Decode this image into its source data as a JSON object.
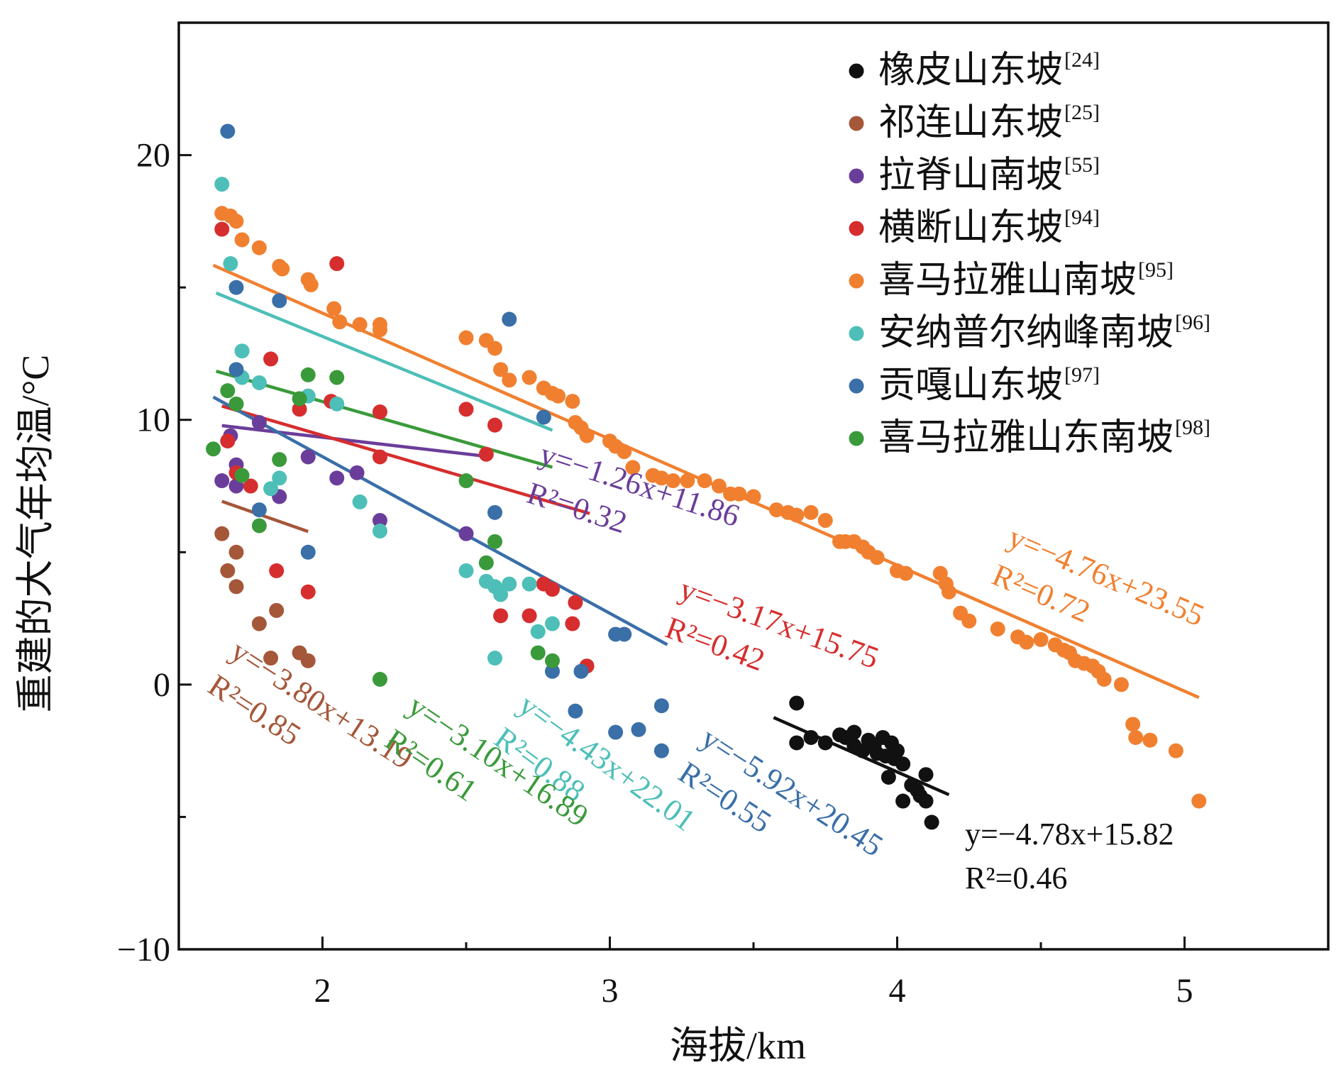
{
  "chart_data": {
    "type": "scatter",
    "xlabel": "海拔/km",
    "ylabel": "重建的大气年均温/°C",
    "xlim": [
      1.5,
      5.5
    ],
    "ylim": [
      -10,
      25
    ],
    "xticks": [
      2,
      3,
      4,
      5
    ],
    "yticks": [
      -10,
      0,
      10,
      20
    ],
    "xtick_labels": [
      "2",
      "3",
      "4",
      "5"
    ],
    "ytick_labels": [
      "−10",
      "0",
      "10",
      "20"
    ],
    "legend_position": "top-right",
    "series": [
      {
        "name": "橡皮山东坡",
        "ref": "[24]",
        "color": "#111111",
        "points": [
          [
            3.65,
            -0.7
          ],
          [
            3.65,
            -2.2
          ],
          [
            3.7,
            -2.0
          ],
          [
            3.75,
            -2.2
          ],
          [
            3.8,
            -1.9
          ],
          [
            3.82,
            -2.0
          ],
          [
            3.85,
            -1.8
          ],
          [
            3.85,
            -2.3
          ],
          [
            3.88,
            -2.5
          ],
          [
            3.9,
            -2.1
          ],
          [
            3.92,
            -2.3
          ],
          [
            3.93,
            -2.6
          ],
          [
            3.95,
            -2.0
          ],
          [
            3.96,
            -2.7
          ],
          [
            3.97,
            -3.5
          ],
          [
            3.98,
            -2.2
          ],
          [
            3.99,
            -2.8
          ],
          [
            4.0,
            -2.5
          ],
          [
            4.02,
            -3.0
          ],
          [
            4.02,
            -4.4
          ],
          [
            4.05,
            -3.8
          ],
          [
            4.07,
            -4.0
          ],
          [
            4.08,
            -4.2
          ],
          [
            4.1,
            -4.4
          ],
          [
            4.1,
            -3.4
          ],
          [
            4.12,
            -5.2
          ]
        ],
        "fit": {
          "x": [
            3.57,
            4.18
          ],
          "equation": "y=−4.78x+15.82",
          "r2": "R²=0.46"
        }
      },
      {
        "name": "祁连山东坡",
        "ref": "[25]",
        "color": "#A5573A",
        "points": [
          [
            1.65,
            5.7
          ],
          [
            1.67,
            4.3
          ],
          [
            1.7,
            5.0
          ],
          [
            1.7,
            3.7
          ],
          [
            1.78,
            2.3
          ],
          [
            1.82,
            1.0
          ],
          [
            1.84,
            2.8
          ],
          [
            1.92,
            1.2
          ],
          [
            1.95,
            0.9
          ]
        ],
        "fit": {
          "x": [
            1.65,
            1.95
          ],
          "equation": "y=−3.80x+13.19",
          "r2": "R²=0.85"
        }
      },
      {
        "name": "拉脊山南坡",
        "ref": "[55]",
        "color": "#6B3D9A",
        "points": [
          [
            1.65,
            7.7
          ],
          [
            1.68,
            9.4
          ],
          [
            1.7,
            7.5
          ],
          [
            1.7,
            8.3
          ],
          [
            1.78,
            9.9
          ],
          [
            1.85,
            7.1
          ],
          [
            1.95,
            8.6
          ],
          [
            2.05,
            7.8
          ],
          [
            2.12,
            8.0
          ],
          [
            2.2,
            6.2
          ],
          [
            2.5,
            5.7
          ]
        ],
        "fit": {
          "x": [
            1.65,
            2.58
          ],
          "equation": "y=−1.26x+11.86",
          "r2": "R²=0.32"
        }
      },
      {
        "name": "横断山东坡",
        "ref": "[94]",
        "color": "#D62E2E",
        "points": [
          [
            1.65,
            17.2
          ],
          [
            1.67,
            9.2
          ],
          [
            1.7,
            8.0
          ],
          [
            1.75,
            7.5
          ],
          [
            1.82,
            12.3
          ],
          [
            1.84,
            4.3
          ],
          [
            1.92,
            10.4
          ],
          [
            1.95,
            3.5
          ],
          [
            2.05,
            15.9
          ],
          [
            2.03,
            10.7
          ],
          [
            2.2,
            10.3
          ],
          [
            2.2,
            8.6
          ],
          [
            2.5,
            10.4
          ],
          [
            2.57,
            8.7
          ],
          [
            2.6,
            9.8
          ],
          [
            2.62,
            2.6
          ],
          [
            2.72,
            2.6
          ],
          [
            2.77,
            3.8
          ],
          [
            2.8,
            3.6
          ],
          [
            2.87,
            2.3
          ],
          [
            2.88,
            3.1
          ],
          [
            2.92,
            0.7
          ]
        ],
        "fit": {
          "x": [
            1.65,
            2.93
          ],
          "equation": "y=−3.17x+15.75",
          "r2": "R²=0.42"
        }
      },
      {
        "name": "喜马拉雅山南坡",
        "ref": "[95]",
        "color": "#F08030",
        "points": [
          [
            1.65,
            17.8
          ],
          [
            1.68,
            17.7
          ],
          [
            1.7,
            17.5
          ],
          [
            1.72,
            16.8
          ],
          [
            1.78,
            16.5
          ],
          [
            1.85,
            15.8
          ],
          [
            1.86,
            15.7
          ],
          [
            1.95,
            15.3
          ],
          [
            1.96,
            15.1
          ],
          [
            2.04,
            14.2
          ],
          [
            2.06,
            13.7
          ],
          [
            2.13,
            13.6
          ],
          [
            2.2,
            13.6
          ],
          [
            2.2,
            13.4
          ],
          [
            2.5,
            13.1
          ],
          [
            2.57,
            13.0
          ],
          [
            2.6,
            12.7
          ],
          [
            2.62,
            11.9
          ],
          [
            2.65,
            11.5
          ],
          [
            2.72,
            11.6
          ],
          [
            2.77,
            11.2
          ],
          [
            2.8,
            11.0
          ],
          [
            2.82,
            10.9
          ],
          [
            2.87,
            10.7
          ],
          [
            2.88,
            9.9
          ],
          [
            2.9,
            9.7
          ],
          [
            2.92,
            9.4
          ],
          [
            3.0,
            9.2
          ],
          [
            3.02,
            9.0
          ],
          [
            3.05,
            8.8
          ],
          [
            3.08,
            8.2
          ],
          [
            3.15,
            7.9
          ],
          [
            3.18,
            7.8
          ],
          [
            3.22,
            7.7
          ],
          [
            3.27,
            7.7
          ],
          [
            3.33,
            7.7
          ],
          [
            3.38,
            7.5
          ],
          [
            3.42,
            7.2
          ],
          [
            3.45,
            7.2
          ],
          [
            3.5,
            7.1
          ],
          [
            3.58,
            6.6
          ],
          [
            3.62,
            6.5
          ],
          [
            3.65,
            6.4
          ],
          [
            3.7,
            6.5
          ],
          [
            3.75,
            6.2
          ],
          [
            3.8,
            5.4
          ],
          [
            3.82,
            5.4
          ],
          [
            3.85,
            5.4
          ],
          [
            3.88,
            5.2
          ],
          [
            3.9,
            5.0
          ],
          [
            3.93,
            4.8
          ],
          [
            4.0,
            4.3
          ],
          [
            4.03,
            4.2
          ],
          [
            4.15,
            4.2
          ],
          [
            4.17,
            3.8
          ],
          [
            4.18,
            3.5
          ],
          [
            4.22,
            2.7
          ],
          [
            4.25,
            2.4
          ],
          [
            4.35,
            2.1
          ],
          [
            4.42,
            1.8
          ],
          [
            4.45,
            1.6
          ],
          [
            4.5,
            1.7
          ],
          [
            4.55,
            1.5
          ],
          [
            4.58,
            1.3
          ],
          [
            4.6,
            1.2
          ],
          [
            4.62,
            0.9
          ],
          [
            4.65,
            0.8
          ],
          [
            4.68,
            0.7
          ],
          [
            4.7,
            0.5
          ],
          [
            4.72,
            0.2
          ],
          [
            4.78,
            0.0
          ],
          [
            4.82,
            -1.5
          ],
          [
            4.83,
            -2.0
          ],
          [
            4.88,
            -2.1
          ],
          [
            4.97,
            -2.5
          ],
          [
            5.05,
            -4.4
          ]
        ],
        "fit": {
          "x": [
            1.62,
            5.05
          ],
          "equation": "y=−4.76x+23.55",
          "r2": "R²=0.72"
        }
      },
      {
        "name": "安纳普尔纳峰南坡",
        "ref": "[96]",
        "color": "#4DBFB8",
        "points": [
          [
            1.65,
            18.9
          ],
          [
            1.68,
            15.9
          ],
          [
            1.72,
            12.6
          ],
          [
            1.72,
            11.6
          ],
          [
            1.78,
            11.4
          ],
          [
            1.82,
            7.4
          ],
          [
            1.85,
            7.8
          ],
          [
            1.95,
            10.9
          ],
          [
            2.05,
            10.6
          ],
          [
            2.13,
            6.9
          ],
          [
            2.2,
            5.8
          ],
          [
            2.5,
            4.3
          ],
          [
            2.57,
            3.9
          ],
          [
            2.6,
            3.7
          ],
          [
            2.6,
            1.0
          ],
          [
            2.62,
            3.4
          ],
          [
            2.65,
            3.8
          ],
          [
            2.72,
            3.8
          ],
          [
            2.75,
            2.0
          ],
          [
            2.8,
            2.3
          ]
        ],
        "fit": {
          "x": [
            1.63,
            2.8
          ],
          "equation": "y=−4.43x+22.01",
          "r2": "R²=0.88"
        }
      },
      {
        "name": "贡嘎山东坡",
        "ref": "[97]",
        "color": "#3A6FA8",
        "points": [
          [
            1.67,
            20.9
          ],
          [
            1.7,
            15.0
          ],
          [
            1.7,
            11.9
          ],
          [
            1.78,
            6.6
          ],
          [
            1.85,
            14.5
          ],
          [
            1.95,
            5.0
          ],
          [
            2.6,
            6.5
          ],
          [
            2.65,
            13.8
          ],
          [
            2.77,
            10.1
          ],
          [
            2.8,
            0.5
          ],
          [
            2.88,
            -1.0
          ],
          [
            2.9,
            0.5
          ],
          [
            3.02,
            1.9
          ],
          [
            3.05,
            1.9
          ],
          [
            3.02,
            -1.8
          ],
          [
            3.1,
            -1.7
          ],
          [
            3.18,
            -0.8
          ],
          [
            3.18,
            -2.5
          ]
        ],
        "fit": {
          "x": [
            1.62,
            3.2
          ],
          "equation": "y=−5.92x+20.45",
          "r2": "R²=0.55"
        }
      },
      {
        "name": "喜马拉雅山东南坡",
        "ref": "[98]",
        "color": "#3A9A3A",
        "points": [
          [
            1.62,
            8.9
          ],
          [
            1.67,
            11.1
          ],
          [
            1.7,
            10.6
          ],
          [
            1.72,
            7.9
          ],
          [
            1.78,
            6.0
          ],
          [
            1.85,
            8.5
          ],
          [
            1.92,
            10.8
          ],
          [
            1.95,
            11.7
          ],
          [
            2.05,
            11.6
          ],
          [
            2.2,
            0.2
          ],
          [
            2.5,
            7.7
          ],
          [
            2.57,
            4.6
          ],
          [
            2.6,
            5.4
          ],
          [
            2.75,
            1.2
          ],
          [
            2.8,
            0.9
          ]
        ],
        "fit": {
          "x": [
            1.63,
            2.8
          ],
          "equation": "y=−3.10x+16.89",
          "r2": "R²=0.61"
        }
      }
    ]
  }
}
